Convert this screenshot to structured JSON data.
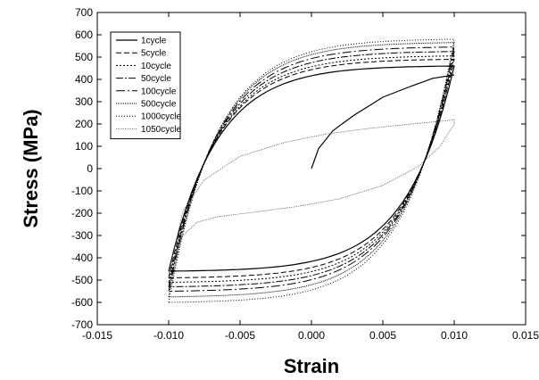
{
  "chart_data": {
    "type": "line",
    "title": "",
    "xlabel": "Strain",
    "ylabel": "Stress (MPa)",
    "xlim": [
      -0.015,
      0.015
    ],
    "ylim": [
      -700,
      700
    ],
    "x_ticks": [
      -0.015,
      -0.01,
      -0.005,
      0.0,
      0.005,
      0.01,
      0.015
    ],
    "x_tick_labels": [
      "-0.015",
      "-0.010",
      "-0.005",
      "0.000",
      "0.005",
      "0.010",
      "0.015"
    ],
    "y_ticks": [
      -700,
      -600,
      -500,
      -400,
      -300,
      -200,
      -100,
      0,
      100,
      200,
      300,
      400,
      500,
      600,
      700
    ],
    "y_tick_labels": [
      "-700",
      "-600",
      "-500",
      "-400",
      "-300",
      "-200",
      "-100",
      "0",
      "100",
      "200",
      "300",
      "400",
      "500",
      "600",
      "700"
    ],
    "grid": false,
    "legend_position": "top-left",
    "series": [
      {
        "name": "1cycle",
        "dash": "",
        "width": 1.2,
        "color": "#000000",
        "initial_loading": [
          [
            0.0,
            0
          ],
          [
            0.0005,
            90
          ],
          [
            0.0015,
            170
          ],
          [
            0.003,
            240
          ],
          [
            0.005,
            320
          ],
          [
            0.007,
            370
          ],
          [
            0.0085,
            405
          ],
          [
            0.01,
            420
          ]
        ],
        "upper_stress": 460,
        "lower_stress": -460
      },
      {
        "name": "5cycle",
        "dash": "6,3",
        "width": 1,
        "color": "#000000",
        "upper_stress": 490,
        "lower_stress": -490
      },
      {
        "name": "10cycle",
        "dash": "2,2",
        "width": 1,
        "color": "#000000",
        "upper_stress": 505,
        "lower_stress": -510
      },
      {
        "name": "50cycle",
        "dash": "8,2,2,2",
        "width": 1,
        "color": "#000000",
        "upper_stress": 525,
        "lower_stress": -530
      },
      {
        "name": "100cycle",
        "dash": "10,3,2,3",
        "width": 1,
        "color": "#000000",
        "upper_stress": 545,
        "lower_stress": -550
      },
      {
        "name": "500cycle",
        "dash": "1,1",
        "width": 1,
        "color": "#000000",
        "upper_stress": 565,
        "lower_stress": -575
      },
      {
        "name": "1000cycle",
        "dash": "1,2",
        "width": 1,
        "color": "#000000",
        "upper_stress": 580,
        "lower_stress": -600
      },
      {
        "name": "1050cycle",
        "dash": "1,1",
        "width": 0.8,
        "color": "#555555",
        "loop": [
          [
            -0.01,
            -470
          ],
          [
            -0.0095,
            -380
          ],
          [
            -0.009,
            -300
          ],
          [
            -0.008,
            -240
          ],
          [
            -0.0065,
            -215
          ],
          [
            -0.004,
            -195
          ],
          [
            -0.001,
            -170
          ],
          [
            0.002,
            -135
          ],
          [
            0.005,
            -75
          ],
          [
            0.0075,
            10
          ],
          [
            0.009,
            100
          ],
          [
            0.01,
            200
          ],
          [
            0.01,
            220
          ],
          [
            0.0095,
            215
          ],
          [
            0.007,
            200
          ],
          [
            0.004,
            180
          ],
          [
            0.001,
            155
          ],
          [
            -0.002,
            115
          ],
          [
            -0.005,
            55
          ],
          [
            -0.0075,
            -50
          ],
          [
            -0.009,
            -190
          ],
          [
            -0.0095,
            -330
          ],
          [
            -0.01,
            -470
          ]
        ]
      }
    ]
  }
}
